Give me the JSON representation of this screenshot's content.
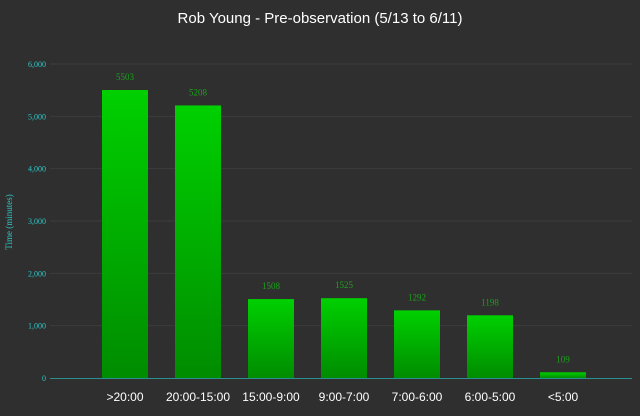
{
  "chart_data": {
    "type": "bar",
    "title": "Rob Young - Pre-observation (5/13 to 6/11)",
    "ylabel": "Time (minutes)",
    "xlabel": "",
    "categories": [
      ">20:00",
      "20:00-15:00",
      "15:00-9:00",
      "9:00-7:00",
      "7:00-6:00",
      "6:00-5:00",
      "<5:00"
    ],
    "values": [
      5503,
      5208,
      1508,
      1525,
      1292,
      1198,
      109
    ],
    "value_labels": [
      "5503",
      "5208",
      "1508",
      "1525",
      "1292",
      "1198",
      "109"
    ],
    "ylim": [
      0,
      6000
    ],
    "yticks": [
      0,
      1000,
      2000,
      3000,
      4000,
      5000,
      6000
    ],
    "ytick_labels": [
      "0",
      "1,000",
      "2,000",
      "3,000",
      "4,000",
      "5,000",
      "6,000"
    ],
    "grid": true,
    "legend": "none",
    "colors": {
      "background": "#2f2f2f",
      "bar_top": "#00d000",
      "bar_bottom": "#008c00",
      "axis_text": "#2ec7c7",
      "data_label": "#19a319"
    }
  }
}
